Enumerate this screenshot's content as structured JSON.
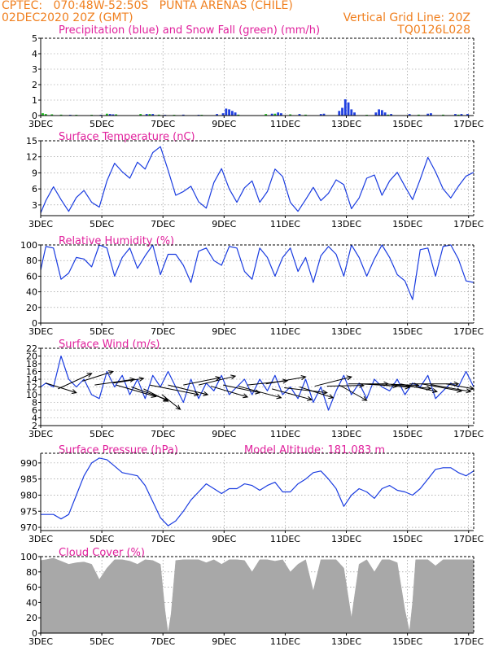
{
  "header": {
    "line1_left": "CPTEC:   070:48W-52:50S   PUNTA ARENAS (CHILE)",
    "line2_left": "02DEC2020 20Z (GMT)",
    "line2_right": "Vertical Grid Line: 20Z",
    "line3_right": "TQ0126L028",
    "header_color": "#f08020",
    "title_color": "#e0209c"
  },
  "x_axis": {
    "ticks": [
      "3DEC",
      "5DEC",
      "7DEC",
      "9DEC",
      "11DEC",
      "13DEC",
      "15DEC",
      "17DEC"
    ],
    "day_start": 2.833,
    "day_end": 17.0
  },
  "chart_data": [
    {
      "id": "precipitation",
      "type": "bar",
      "title": "Precipitation (blue) and Snow Fall (green) (mm/h)",
      "ylim": [
        0,
        5
      ],
      "yticks": [
        "0",
        "1",
        "2",
        "3",
        "4",
        "5"
      ],
      "series": [
        {
          "name": "Precipitation",
          "color": "#2040e0",
          "points": [
            [
              2.9,
              0.05
            ],
            [
              3.8,
              0.05
            ],
            [
              4.8,
              0.05
            ],
            [
              5.1,
              0.1
            ],
            [
              5.2,
              0.08
            ],
            [
              6.3,
              0.1
            ],
            [
              6.5,
              0.1
            ],
            [
              6.9,
              0.05
            ],
            [
              7.5,
              0.06
            ],
            [
              8.0,
              0.05
            ],
            [
              8.6,
              0.1
            ],
            [
              8.8,
              0.15
            ],
            [
              8.9,
              0.45
            ],
            [
              9.0,
              0.4
            ],
            [
              9.1,
              0.3
            ],
            [
              9.2,
              0.2
            ],
            [
              10.4,
              0.12
            ],
            [
              10.6,
              0.2
            ],
            [
              10.7,
              0.15
            ],
            [
              11.3,
              0.1
            ],
            [
              12.0,
              0.1
            ],
            [
              12.1,
              0.12
            ],
            [
              12.6,
              0.3
            ],
            [
              12.7,
              0.5
            ],
            [
              12.8,
              1.05
            ],
            [
              12.9,
              0.85
            ],
            [
              13.0,
              0.4
            ],
            [
              13.1,
              0.2
            ],
            [
              13.8,
              0.2
            ],
            [
              13.9,
              0.4
            ],
            [
              14.0,
              0.35
            ],
            [
              14.1,
              0.2
            ],
            [
              14.3,
              0.1
            ],
            [
              14.9,
              0.1
            ],
            [
              15.5,
              0.12
            ],
            [
              15.6,
              0.15
            ],
            [
              16.4,
              0.1
            ],
            [
              16.6,
              0.1
            ],
            [
              16.8,
              0.1
            ]
          ]
        },
        {
          "name": "Snow Fall",
          "color": "#20c020",
          "points": [
            [
              2.9,
              0.15
            ],
            [
              3.0,
              0.1
            ],
            [
              3.2,
              0.08
            ],
            [
              3.5,
              0.06
            ],
            [
              4.0,
              0.05
            ],
            [
              4.5,
              0.05
            ],
            [
              5.0,
              0.12
            ],
            [
              5.3,
              0.08
            ],
            [
              6.1,
              0.1
            ],
            [
              6.4,
              0.1
            ],
            [
              6.7,
              0.06
            ],
            [
              7.2,
              0.05
            ],
            [
              8.1,
              0.05
            ],
            [
              9.3,
              0.06
            ],
            [
              10.2,
              0.1
            ],
            [
              10.5,
              0.12
            ],
            [
              11.0,
              0.08
            ],
            [
              11.5,
              0.06
            ],
            [
              13.5,
              0.05
            ],
            [
              14.2,
              0.06
            ],
            [
              15.2,
              0.06
            ],
            [
              16.0,
              0.06
            ],
            [
              16.5,
              0.06
            ]
          ]
        }
      ]
    },
    {
      "id": "temperature",
      "type": "line",
      "title": "Surface Temperature (nC)",
      "ylim": [
        1,
        15
      ],
      "yticks": [
        "3",
        "6",
        "9",
        "12",
        "15"
      ],
      "color": "#1a3ce0",
      "x": [
        2.833,
        3.0,
        3.25,
        3.5,
        3.75,
        4.0,
        4.25,
        4.5,
        4.75,
        5.0,
        5.25,
        5.5,
        5.75,
        6.0,
        6.25,
        6.5,
        6.75,
        7.0,
        7.25,
        7.5,
        7.75,
        8.0,
        8.25,
        8.5,
        8.75,
        9.0,
        9.25,
        9.5,
        9.75,
        10.0,
        10.25,
        10.5,
        10.75,
        11.0,
        11.25,
        11.5,
        11.75,
        12.0,
        12.25,
        12.5,
        12.75,
        13.0,
        13.25,
        13.5,
        13.75,
        14.0,
        14.25,
        14.5,
        14.75,
        15.0,
        15.25,
        15.5,
        15.75,
        16.0,
        16.25,
        16.5,
        16.75,
        17.0
      ],
      "values": [
        1.5,
        3.8,
        6.4,
        4.0,
        1.8,
        4.4,
        5.7,
        3.5,
        2.6,
        7.5,
        10.8,
        9.2,
        8.0,
        11.0,
        9.7,
        12.8,
        13.9,
        9.5,
        4.8,
        5.5,
        6.5,
        3.6,
        2.4,
        7.2,
        9.8,
        6.0,
        3.5,
        6.2,
        7.5,
        3.5,
        5.5,
        9.7,
        8.3,
        3.5,
        1.8,
        4.0,
        6.3,
        3.8,
        5.2,
        7.7,
        6.8,
        2.3,
        4.3,
        8.0,
        8.6,
        4.8,
        7.5,
        9.1,
        6.5,
        4.0,
        7.8,
        11.9,
        9.2,
        6.0,
        4.3,
        6.5,
        8.4,
        9.1
      ]
    },
    {
      "id": "humidity",
      "type": "line",
      "title": "Relative Humidity (%)",
      "ylim": [
        0,
        100
      ],
      "yticks": [
        "0",
        "20",
        "40",
        "60",
        "80",
        "100"
      ],
      "color": "#1a3ce0",
      "x": [
        2.833,
        3.0,
        3.25,
        3.5,
        3.75,
        4.0,
        4.25,
        4.5,
        4.75,
        5.0,
        5.25,
        5.5,
        5.75,
        6.0,
        6.25,
        6.5,
        6.75,
        7.0,
        7.25,
        7.5,
        7.75,
        8.0,
        8.25,
        8.5,
        8.75,
        9.0,
        9.25,
        9.5,
        9.75,
        10.0,
        10.25,
        10.5,
        10.75,
        11.0,
        11.25,
        11.5,
        11.75,
        12.0,
        12.25,
        12.5,
        12.75,
        13.0,
        13.25,
        13.5,
        13.75,
        14.0,
        14.25,
        14.5,
        14.75,
        15.0,
        15.25,
        15.5,
        15.75,
        16.0,
        16.25,
        16.5,
        16.75,
        17.0
      ],
      "values": [
        68,
        98,
        96,
        56,
        64,
        84,
        82,
        72,
        100,
        96,
        60,
        84,
        96,
        70,
        86,
        100,
        62,
        88,
        88,
        74,
        52,
        92,
        96,
        80,
        74,
        98,
        96,
        66,
        56,
        96,
        84,
        60,
        84,
        96,
        66,
        84,
        52,
        86,
        98,
        88,
        60,
        100,
        84,
        60,
        82,
        100,
        84,
        62,
        54,
        30,
        94,
        96,
        60,
        98,
        100,
        82,
        54,
        52
      ]
    },
    {
      "id": "wind",
      "type": "line",
      "title": "Surface Wind (m/s)",
      "ylim": [
        2,
        22
      ],
      "yticks": [
        "2",
        "4",
        "6",
        "8",
        "10",
        "12",
        "14",
        "16",
        "18",
        "20",
        "22"
      ],
      "color": "#1a3ce0",
      "x": [
        2.833,
        3.0,
        3.25,
        3.5,
        3.75,
        4.0,
        4.25,
        4.5,
        4.75,
        5.0,
        5.25,
        5.5,
        5.75,
        6.0,
        6.25,
        6.5,
        6.75,
        7.0,
        7.25,
        7.5,
        7.75,
        8.0,
        8.25,
        8.5,
        8.75,
        9.0,
        9.25,
        9.5,
        9.75,
        10.0,
        10.25,
        10.5,
        10.75,
        11.0,
        11.25,
        11.5,
        11.75,
        12.0,
        12.25,
        12.5,
        12.75,
        13.0,
        13.25,
        13.5,
        13.75,
        14.0,
        14.25,
        14.5,
        14.75,
        15.0,
        15.25,
        15.5,
        15.75,
        16.0,
        16.25,
        16.5,
        16.75,
        17.0
      ],
      "values": [
        12,
        13,
        12,
        20,
        14,
        12,
        14,
        10,
        9,
        16,
        12,
        15,
        10,
        14,
        9,
        15,
        12,
        16,
        12,
        8,
        14,
        9,
        13,
        11,
        15,
        10,
        12,
        14,
        10,
        14,
        11,
        15,
        10,
        12,
        9,
        14,
        8,
        12,
        6,
        11,
        15,
        10,
        13,
        9,
        14,
        12,
        11,
        14,
        10,
        13,
        12,
        15,
        9,
        11,
        13,
        12,
        16,
        12
      ],
      "barbs": [
        [
          3.0,
          13,
          4.0,
          10.5
        ],
        [
          3.4,
          11.5,
          4.5,
          15.5
        ],
        [
          4.2,
          13.5,
          5.2,
          16
        ],
        [
          4.6,
          12.5,
          5.9,
          14
        ],
        [
          5.2,
          13,
          6.2,
          14.2
        ],
        [
          5.3,
          12.5,
          6.6,
          9.5
        ],
        [
          5.8,
          12,
          7.0,
          8.6
        ],
        [
          6.2,
          11.5,
          7.0,
          8.3
        ],
        [
          6.4,
          12.5,
          8.0,
          10
        ],
        [
          6.8,
          10,
          7.4,
          6.2
        ],
        [
          7.0,
          12.5,
          8.3,
          10
        ],
        [
          7.5,
          12.5,
          8.7,
          14.4
        ],
        [
          8.0,
          12.5,
          9.2,
          14.8
        ],
        [
          8.4,
          12.2,
          9.6,
          9.4
        ],
        [
          8.8,
          12.5,
          10.0,
          10.5
        ],
        [
          9.3,
          12.2,
          10.7,
          9.2
        ],
        [
          9.6,
          12.5,
          10.9,
          13.6
        ],
        [
          10.2,
          12.8,
          11.5,
          14.6
        ],
        [
          10.4,
          11.5,
          11.7,
          8.7
        ],
        [
          10.8,
          11.8,
          12.2,
          10.5
        ],
        [
          11.3,
          12,
          12.4,
          9.2
        ],
        [
          11.8,
          12.2,
          13.0,
          14.6
        ],
        [
          12.2,
          12.2,
          13.4,
          12.4
        ],
        [
          12.6,
          12.5,
          13.5,
          8.5
        ],
        [
          12.9,
          12.8,
          14.2,
          12.8
        ],
        [
          13.3,
          12.8,
          14.5,
          12.2
        ],
        [
          13.6,
          12.8,
          14.9,
          11.9
        ],
        [
          14.0,
          12.8,
          15.2,
          12.4
        ],
        [
          14.3,
          12.6,
          15.6,
          11.6
        ],
        [
          14.6,
          12.8,
          15.8,
          10.8
        ],
        [
          14.9,
          12.8,
          16.5,
          12.8
        ],
        [
          15.3,
          12.8,
          16.6,
          10.9
        ],
        [
          15.6,
          12.6,
          16.9,
          10.8
        ],
        [
          16.1,
          12.8,
          17.0,
          11.5
        ]
      ]
    },
    {
      "id": "pressure",
      "type": "line",
      "title": "Surface Pressure (hPa)",
      "extra_label": "Model Altitude: 181.083 m",
      "ylim": [
        969,
        993
      ],
      "yticks": [
        "970",
        "975",
        "980",
        "985",
        "990"
      ],
      "color": "#1a3ce0",
      "x": [
        2.833,
        3.0,
        3.25,
        3.5,
        3.75,
        4.0,
        4.25,
        4.5,
        4.75,
        5.0,
        5.25,
        5.5,
        5.75,
        6.0,
        6.25,
        6.5,
        6.75,
        7.0,
        7.25,
        7.5,
        7.75,
        8.0,
        8.25,
        8.5,
        8.75,
        9.0,
        9.25,
        9.5,
        9.75,
        10.0,
        10.25,
        10.5,
        10.75,
        11.0,
        11.25,
        11.5,
        11.75,
        12.0,
        12.25,
        12.5,
        12.75,
        13.0,
        13.25,
        13.5,
        13.75,
        14.0,
        14.25,
        14.5,
        14.75,
        15.0,
        15.25,
        15.5,
        15.75,
        16.0,
        16.25,
        16.5,
        16.75,
        17.0
      ],
      "values": [
        974,
        974,
        974,
        972.6,
        974,
        980,
        986,
        990,
        991.5,
        991,
        989,
        987,
        986.5,
        986,
        983,
        978,
        973,
        970.5,
        972,
        975,
        978.5,
        981,
        983.5,
        982,
        980.5,
        982,
        982,
        983.5,
        983,
        981.5,
        983,
        984,
        981,
        981,
        983.5,
        985,
        987,
        987.5,
        985,
        982,
        976.5,
        980,
        982,
        981,
        979,
        982,
        983,
        981.5,
        981,
        980,
        982,
        985,
        988,
        988.5,
        988.5,
        987,
        986,
        987.5
      ]
    },
    {
      "id": "cloud",
      "type": "area",
      "title": "Cloud Cover (%)",
      "ylim": [
        0,
        100
      ],
      "yticks": [
        "0",
        "20",
        "40",
        "60",
        "80",
        "100"
      ],
      "color": "#a8a8a8",
      "x": [
        2.833,
        3.0,
        3.25,
        3.5,
        3.75,
        4.0,
        4.25,
        4.5,
        4.75,
        5.0,
        5.25,
        5.5,
        5.75,
        6.0,
        6.25,
        6.5,
        6.75,
        6.9,
        7.0,
        7.1,
        7.25,
        7.5,
        7.75,
        8.0,
        8.25,
        8.5,
        8.75,
        9.0,
        9.25,
        9.5,
        9.75,
        10.0,
        10.25,
        10.5,
        10.75,
        11.0,
        11.25,
        11.5,
        11.75,
        12.0,
        12.25,
        12.5,
        12.75,
        13.0,
        13.25,
        13.5,
        13.75,
        14.0,
        14.25,
        14.5,
        14.75,
        14.9,
        15.0,
        15.1,
        15.25,
        15.5,
        15.75,
        16.0,
        16.25,
        16.5,
        16.75,
        17.0
      ],
      "values": [
        95,
        96,
        98,
        94,
        90,
        92,
        93,
        90,
        70,
        85,
        96,
        96,
        94,
        90,
        96,
        95,
        90,
        30,
        0,
        25,
        95,
        96,
        96,
        96,
        92,
        96,
        90,
        96,
        96,
        95,
        80,
        96,
        96,
        94,
        96,
        80,
        90,
        96,
        55,
        96,
        96,
        96,
        85,
        20,
        90,
        96,
        80,
        96,
        96,
        92,
        30,
        2,
        40,
        96,
        96,
        96,
        88,
        96,
        96,
        96,
        96,
        96
      ]
    }
  ]
}
